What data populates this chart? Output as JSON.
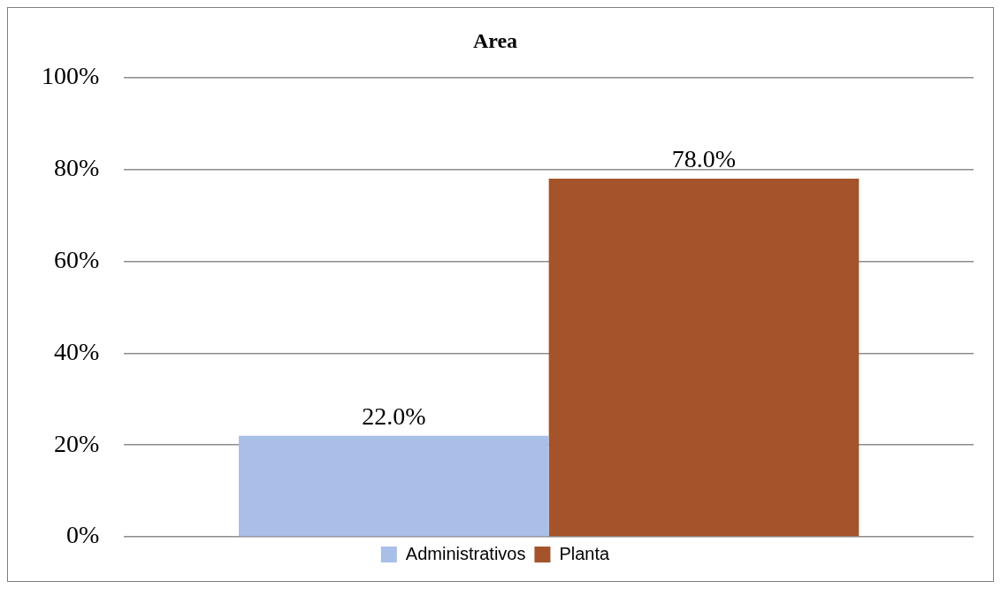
{
  "chart_data": {
    "type": "bar",
    "title": "Area",
    "categories": [
      null
    ],
    "series": [
      {
        "name": "Administrativos",
        "color": "#a9bfe8",
        "values": [
          22
        ],
        "value_labels": [
          "22.0%"
        ]
      },
      {
        "name": "Planta",
        "color": "#a5532a",
        "values": [
          78
        ],
        "value_labels": [
          "78.0%"
        ]
      }
    ],
    "ylim": [
      0,
      100
    ],
    "yticks": [
      {
        "value": 0,
        "label": "0%"
      },
      {
        "value": 20,
        "label": "20%"
      },
      {
        "value": 40,
        "label": "40%"
      },
      {
        "value": 60,
        "label": "60%"
      },
      {
        "value": 80,
        "label": "80%"
      },
      {
        "value": 100,
        "label": "100%"
      }
    ],
    "grid": "y",
    "legend": "bottom"
  }
}
